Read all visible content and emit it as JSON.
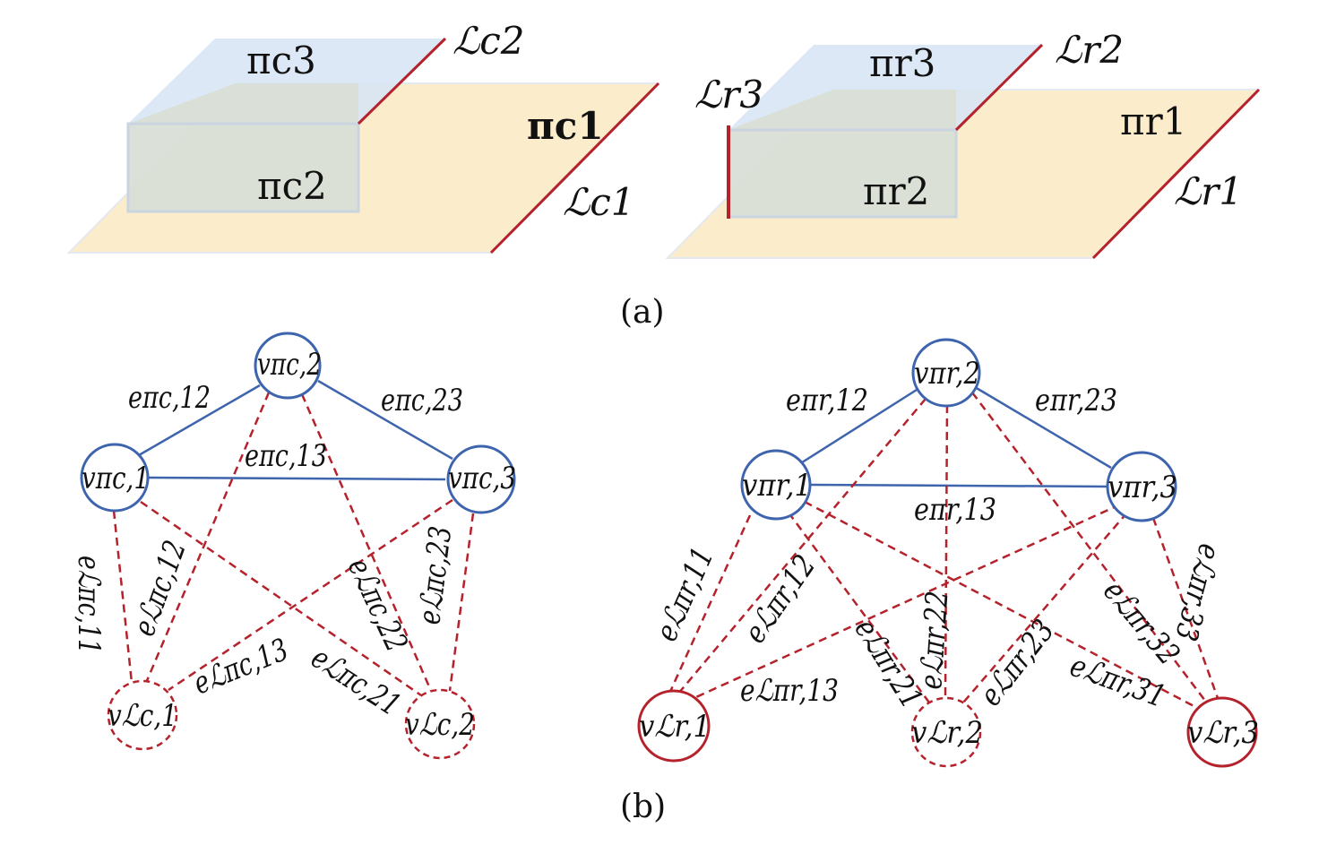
{
  "panel_a": {
    "caption": "(a)",
    "left": {
      "pi_c3": "πc3",
      "pi_c2": "πc2",
      "pi_c1": "πc1",
      "L_c2": "ℒc2",
      "L_c1": "ℒc1"
    },
    "right": {
      "pi_r3": "πr3",
      "pi_r2": "πr2",
      "pi_r1": "πr1",
      "L_r2": "ℒr2",
      "L_r3": "ℒr3",
      "L_r1": "ℒr1"
    }
  },
  "panel_b": {
    "caption": "(b)",
    "left": {
      "nodes": {
        "v_pc1": "vπc,1",
        "v_pc2": "vπc,2",
        "v_pc3": "vπc,3",
        "v_Lc1": "vℒc,1",
        "v_Lc2": "vℒc,2"
      },
      "edges": {
        "e_pc12": "eπc,12",
        "e_pc23": "eπc,23",
        "e_pc13": "eπc,13",
        "e_Lpc11": "eℒπc,11",
        "e_Lpc12": "eℒπc,12",
        "e_Lpc13": "eℒπc,13",
        "e_Lpc21": "eℒπc,21",
        "e_Lpc22": "eℒπc,22",
        "e_Lpc23": "eℒπc,23"
      }
    },
    "right": {
      "nodes": {
        "v_pr1": "vπr,1",
        "v_pr2": "vπr,2",
        "v_pr3": "vπr,3",
        "v_Lr1": "vℒr,1",
        "v_Lr2": "vℒr,2",
        "v_Lr3": "vℒr,3"
      },
      "edges": {
        "e_pr12": "eπr,12",
        "e_pr23": "eπr,23",
        "e_pr13": "eπr,13",
        "e_Lpr11": "eℒπr,11",
        "e_Lpr12": "eℒπr,12",
        "e_Lpr13": "eℒπr,13",
        "e_Lpr21": "eℒπr,21",
        "e_Lpr22": "eℒπr,22",
        "e_Lpr23": "eℒπr,23",
        "e_Lpr31": "eℒπr,31",
        "e_Lpr32": "eℒπr,32",
        "e_Lpr33": "eℒπr,33"
      }
    }
  },
  "colors": {
    "plane_yellow": "#fbeccb",
    "plane_blue": "#d8e6f4",
    "plane_overlap": "#d9dfd6",
    "line_red": "#b5222c",
    "node_blue": "#3d64ad",
    "edge_red": "#b5222c"
  }
}
